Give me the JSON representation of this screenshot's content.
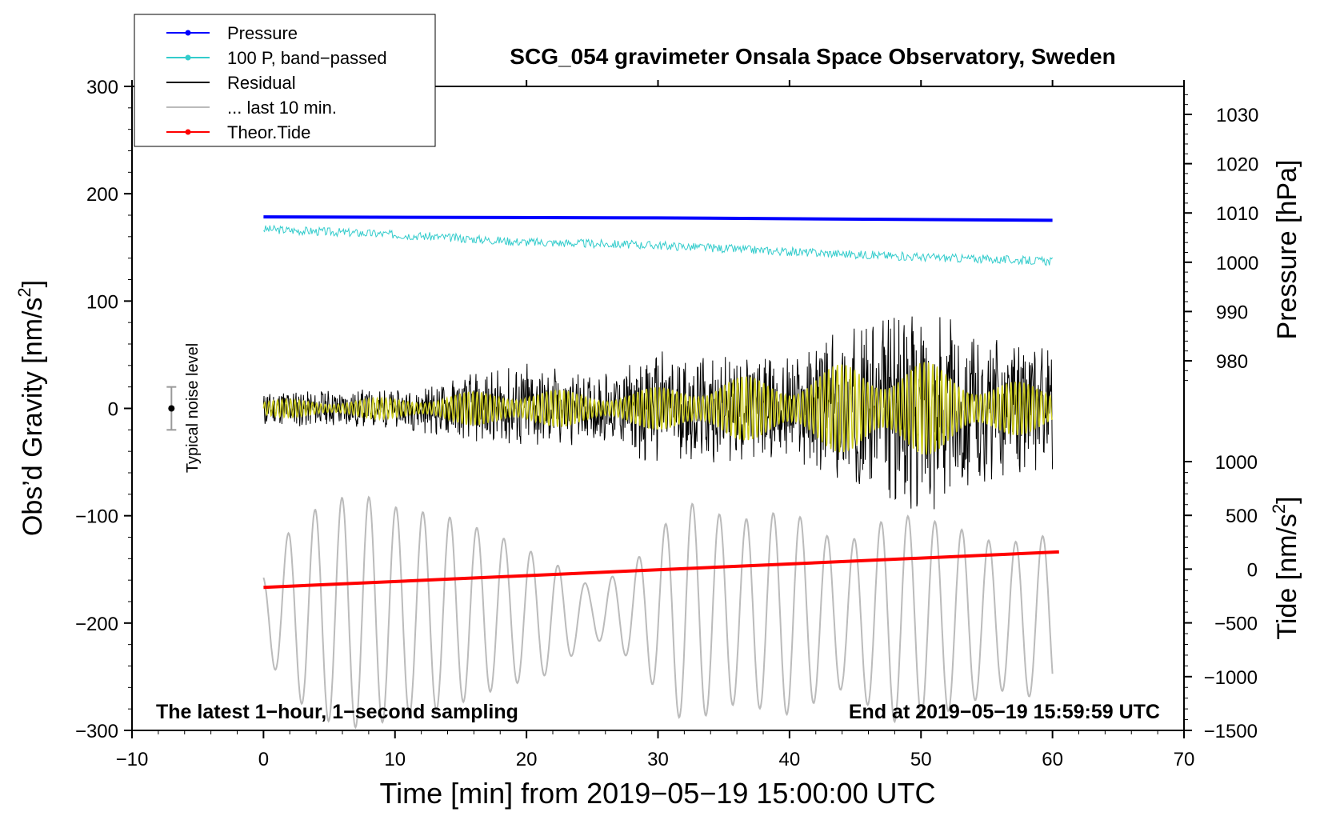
{
  "chart_data": {
    "type": "line",
    "title": "SCG_054 gravimeter Onsala Space Observatory, Sweden",
    "xlabel": "Time [min] from 2019−05−19 15:00:00 UTC",
    "ylabel_left": "Obs’d Gravity [nm/s",
    "ylabel_left_sup": "2",
    "ylabel_left_end": "]",
    "ylabel_right_pressure": "Pressure [hPa]",
    "ylabel_right_tide": "Tide [nm/s",
    "ylabel_right_tide_sup": "2",
    "ylabel_right_tide_end": "]",
    "xlim": [
      -10,
      70
    ],
    "ylim": [
      -300,
      300
    ],
    "x_ticks": [
      "−10",
      "0",
      "10",
      "20",
      "30",
      "40",
      "50",
      "60",
      "70"
    ],
    "y_ticks": [
      "300",
      "200",
      "100",
      "0",
      "−100",
      "−200",
      "−300"
    ],
    "pressure_ticks": [
      "1030",
      "1020",
      "1010",
      "1000",
      "990",
      "980"
    ],
    "tide_ticks": [
      "1000",
      "500",
      "0",
      "−500",
      "−1000",
      "−1500"
    ],
    "annotation_left": "The latest 1−hour, 1−second sampling",
    "annotation_right": "End at 2019−05−19 15:59:59 UTC",
    "noise_label": "Typical noise level",
    "noise_level": {
      "x": -7,
      "center": 0,
      "half_range": 20
    },
    "legend": [
      {
        "label": "Pressure",
        "color": "#0000ff",
        "marker": true
      },
      {
        "label": "100 P, band−passed",
        "color": "#33cccc",
        "marker": true
      },
      {
        "label": "Residual",
        "color": "#000000",
        "marker": false
      },
      {
        "label": "... last 10 min.",
        "color": "#bbbbbb",
        "marker": false
      },
      {
        "label": "Theor.Tide",
        "color": "#ff0000",
        "marker": true
      }
    ],
    "series": [
      {
        "name": "Pressure",
        "color": "#0000ff",
        "axis": "pressure_hPa",
        "x": [
          0,
          30,
          60
        ],
        "values": [
          1009.2,
          1009.0,
          1008.5
        ]
      },
      {
        "name": "100 P, band-passed",
        "color": "#33cccc",
        "axis": "gravity",
        "x": [
          0,
          10,
          20,
          30,
          40,
          50,
          60
        ],
        "values": [
          167,
          162,
          155,
          152,
          146,
          141,
          137
        ]
      },
      {
        "name": "Residual",
        "color": "#000000",
        "axis": "gravity",
        "x": [
          0,
          10,
          15,
          20,
          25,
          30,
          35,
          40,
          45,
          50,
          55,
          60
        ],
        "amplitude": [
          20,
          18,
          30,
          45,
          30,
          55,
          50,
          50,
          80,
          100,
          70,
          60
        ]
      },
      {
        "name": "Residual filtered",
        "color": "#cccc22",
        "axis": "gravity",
        "x": [
          0,
          10,
          15,
          20,
          25,
          30,
          35,
          40,
          45,
          50,
          55,
          60
        ],
        "amplitude": [
          8,
          10,
          15,
          20,
          15,
          20,
          30,
          30,
          45,
          45,
          30,
          20
        ]
      },
      {
        "name": "... last 10 min.",
        "color": "#bbbbbb",
        "axis": "gravity",
        "x": [
          0,
          2,
          4,
          6,
          8,
          10,
          14,
          18,
          22,
          25,
          28,
          32,
          36,
          40,
          44,
          48,
          52,
          56,
          60
        ],
        "center": [
          -190,
          -190,
          -190,
          -190,
          -190,
          -190,
          -190,
          -190,
          -195,
          -190,
          -190,
          -190,
          -190,
          -190,
          -195,
          -195,
          -195,
          -195,
          -195
        ],
        "amplitude": [
          40,
          80,
          100,
          110,
          110,
          100,
          90,
          70,
          50,
          20,
          40,
          100,
          80,
          90,
          60,
          90,
          80,
          60,
          70
        ]
      },
      {
        "name": "Theor.Tide",
        "color": "#ff0000",
        "axis": "tide_nm_s2",
        "x": [
          0,
          60.5
        ],
        "values": [
          -170,
          160
        ]
      }
    ]
  }
}
